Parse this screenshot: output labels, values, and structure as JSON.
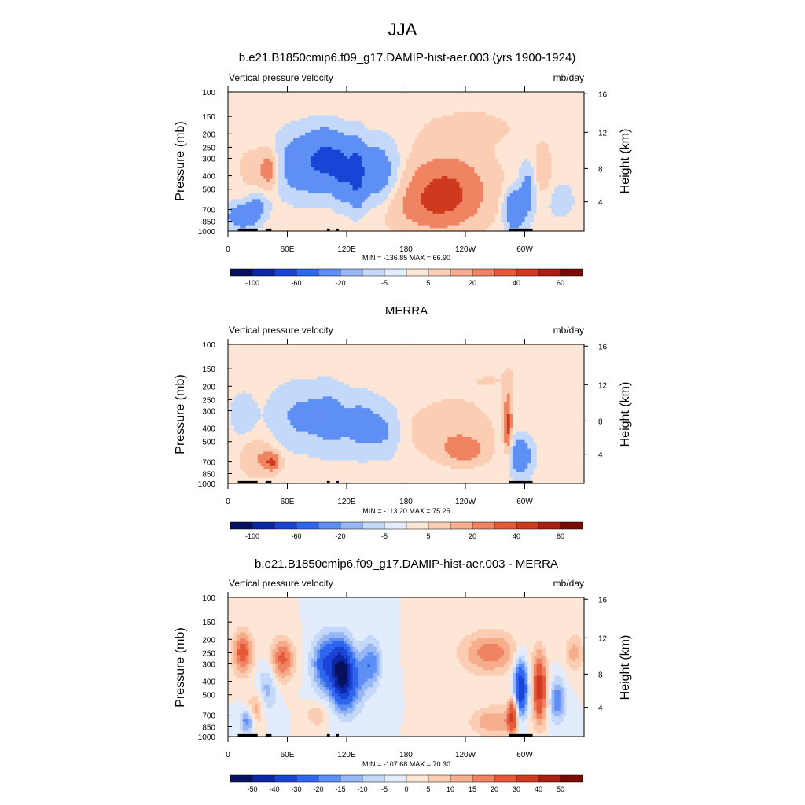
{
  "page": {
    "title": "JJA"
  },
  "panels": [
    {
      "title": "b.e21.B1850cmip6.f09_g17.DAMIP-hist-aer.003 (yrs 1900-1924)",
      "left_label": "Vertical pressure velocity",
      "right_label": "mb/day",
      "stats": "MIN = -136.85  MAX =  66.90"
    },
    {
      "title": "MERRA",
      "left_label": "Vertical pressure velocity",
      "right_label": "mb/day",
      "stats": "MIN = -113.20  MAX =  75.25"
    },
    {
      "title": "b.e21.B1850cmip6.f09_g17.DAMIP-hist-aer.003 - MERRA",
      "left_label": "Vertical pressure velocity",
      "right_label": "mb/day",
      "stats": "MIN = -107.68  MAX =  70.30"
    }
  ],
  "chart_data": [
    {
      "type": "heatmap",
      "title": "b.e21.B1850cmip6.f09_g17.DAMIP-hist-aer.003 (yrs 1900-1924)",
      "subtitle_left": "Vertical pressure velocity",
      "subtitle_right": "mb/day",
      "ylabel": "Pressure (mb)",
      "ylabel_right": "Height (km)",
      "x_ticks": [
        "0",
        "60E",
        "120E",
        "180",
        "120W",
        "60W"
      ],
      "x_tick_lon": [
        0,
        60,
        120,
        180,
        240,
        300
      ],
      "xlim": [
        0,
        360
      ],
      "y_ticks": [
        100,
        150,
        200,
        250,
        300,
        400,
        500,
        700,
        850,
        1000
      ],
      "ylim": [
        1000,
        100
      ],
      "y_scale": "log",
      "right_ticks": [
        4,
        8,
        12,
        16
      ],
      "right_tick_pressure": [
        615,
        355,
        195,
        103
      ],
      "min": -136.85,
      "max": 66.9,
      "colorbar_labels": [
        "-100",
        "-60",
        "-20",
        "-5",
        "5",
        "20",
        "40",
        "60"
      ],
      "colorbar_colors": [
        "#08115e",
        "#0c27a6",
        "#1a44d6",
        "#2f66f0",
        "#5e8ff5",
        "#96b6f7",
        "#c4d8fa",
        "#e2ecfd",
        "#fde6d6",
        "#fbcdb2",
        "#f6ad8c",
        "#f08462",
        "#e65a3a",
        "#cf3a1f",
        "#a91f11",
        "#7a0c05"
      ],
      "features": [
        {
          "lon": 15,
          "p": 780,
          "value": -45,
          "w": 16,
          "h": 0.2
        },
        {
          "lon": 30,
          "p": 650,
          "value": -25,
          "w": 10,
          "h": 0.18
        },
        {
          "lon": 28,
          "p": 350,
          "value": 12,
          "w": 18,
          "h": 0.35
        },
        {
          "lon": 42,
          "p": 360,
          "value": 30,
          "w": 9,
          "h": 0.3
        },
        {
          "lon": 75,
          "p": 330,
          "value": -40,
          "w": 26,
          "h": 0.5
        },
        {
          "lon": 100,
          "p": 300,
          "value": -55,
          "w": 18,
          "h": 0.45
        },
        {
          "lon": 115,
          "p": 380,
          "value": -45,
          "w": 10,
          "h": 0.45
        },
        {
          "lon": 130,
          "p": 380,
          "value": -65,
          "w": 8,
          "h": 0.5
        },
        {
          "lon": 150,
          "p": 380,
          "value": -40,
          "w": 22,
          "h": 0.5
        },
        {
          "lon": 220,
          "p": 480,
          "value": 40,
          "w": 42,
          "h": 0.55
        },
        {
          "lon": 205,
          "p": 700,
          "value": 20,
          "w": 45,
          "h": 0.4
        },
        {
          "lon": 245,
          "p": 180,
          "value": 8,
          "w": 55,
          "h": 0.35
        },
        {
          "lon": 290,
          "p": 700,
          "value": -60,
          "w": 10,
          "h": 0.3
        },
        {
          "lon": 303,
          "p": 500,
          "value": -30,
          "w": 8,
          "h": 0.4
        },
        {
          "lon": 318,
          "p": 380,
          "value": 15,
          "w": 10,
          "h": 0.45
        },
        {
          "lon": 335,
          "p": 600,
          "value": -10,
          "w": 18,
          "h": 0.35
        }
      ]
    },
    {
      "type": "heatmap",
      "title": "MERRA",
      "subtitle_left": "Vertical pressure velocity",
      "subtitle_right": "mb/day",
      "ylabel": "Pressure (mb)",
      "ylabel_right": "Height (km)",
      "x_ticks": [
        "0",
        "60E",
        "120E",
        "180",
        "120W",
        "60W"
      ],
      "x_tick_lon": [
        0,
        60,
        120,
        180,
        240,
        300
      ],
      "xlim": [
        0,
        360
      ],
      "y_ticks": [
        100,
        150,
        200,
        250,
        300,
        400,
        500,
        700,
        850,
        1000
      ],
      "ylim": [
        1000,
        100
      ],
      "y_scale": "log",
      "right_ticks": [
        4,
        8,
        12,
        16
      ],
      "right_tick_pressure": [
        615,
        355,
        195,
        103
      ],
      "min": -113.2,
      "max": 75.25,
      "colorbar_labels": [
        "-100",
        "-60",
        "-20",
        "-5",
        "5",
        "20",
        "40",
        "60"
      ],
      "colorbar_colors": [
        "#08115e",
        "#0c27a6",
        "#1a44d6",
        "#2f66f0",
        "#5e8ff5",
        "#96b6f7",
        "#c4d8fa",
        "#e2ecfd",
        "#fde6d6",
        "#fbcdb2",
        "#f6ad8c",
        "#f08462",
        "#e65a3a",
        "#cf3a1f",
        "#a91f11",
        "#7a0c05"
      ],
      "features": [
        {
          "lon": 15,
          "p": 320,
          "value": -15,
          "w": 12,
          "h": 0.35
        },
        {
          "lon": 30,
          "p": 650,
          "value": 20,
          "w": 16,
          "h": 0.3
        },
        {
          "lon": 45,
          "p": 700,
          "value": 40,
          "w": 8,
          "h": 0.15
        },
        {
          "lon": 75,
          "p": 330,
          "value": -25,
          "w": 30,
          "h": 0.5
        },
        {
          "lon": 105,
          "p": 350,
          "value": -22,
          "w": 16,
          "h": 0.5
        },
        {
          "lon": 135,
          "p": 380,
          "value": -30,
          "w": 18,
          "h": 0.45
        },
        {
          "lon": 160,
          "p": 420,
          "value": -20,
          "w": 14,
          "h": 0.4
        },
        {
          "lon": 225,
          "p": 420,
          "value": 16,
          "w": 40,
          "h": 0.45
        },
        {
          "lon": 240,
          "p": 580,
          "value": 28,
          "w": 20,
          "h": 0.2
        },
        {
          "lon": 265,
          "p": 180,
          "value": 5,
          "w": 50,
          "h": 0.3
        },
        {
          "lon": 283,
          "p": 380,
          "value": 45,
          "w": 4,
          "h": 0.55
        },
        {
          "lon": 295,
          "p": 640,
          "value": -45,
          "w": 12,
          "h": 0.3
        },
        {
          "lon": 340,
          "p": 200,
          "value": 3,
          "w": 20,
          "h": 0.3
        }
      ]
    },
    {
      "type": "heatmap",
      "title": "b.e21.B1850cmip6.f09_g17.DAMIP-hist-aer.003 - MERRA",
      "subtitle_left": "Vertical pressure velocity",
      "subtitle_right": "mb/day",
      "ylabel": "Pressure (mb)",
      "ylabel_right": "Height (km)",
      "x_ticks": [
        "0",
        "60E",
        "120E",
        "180",
        "120W",
        "60W"
      ],
      "x_tick_lon": [
        0,
        60,
        120,
        180,
        240,
        300
      ],
      "xlim": [
        0,
        360
      ],
      "y_ticks": [
        100,
        150,
        200,
        250,
        300,
        400,
        500,
        700,
        850,
        1000
      ],
      "ylim": [
        1000,
        100
      ],
      "y_scale": "log",
      "right_ticks": [
        4,
        8,
        12,
        16
      ],
      "right_tick_pressure": [
        615,
        355,
        195,
        103
      ],
      "min": -107.68,
      "max": 70.3,
      "colorbar_labels": [
        "-50",
        "-40",
        "-30",
        "-20",
        "-15",
        "-10",
        "-5",
        "0",
        "5",
        "10",
        "15",
        "20",
        "30",
        "40",
        "50"
      ],
      "colorbar_colors": [
        "#08115e",
        "#0c27a6",
        "#1a44d6",
        "#2f66f0",
        "#5e8ff5",
        "#96b6f7",
        "#c4d8fa",
        "#e2ecfd",
        "#fde6d6",
        "#fbcdb2",
        "#f6ad8c",
        "#f08462",
        "#e65a3a",
        "#cf3a1f",
        "#a91f11",
        "#7a0c05"
      ],
      "features": [
        {
          "lon": 15,
          "p": 250,
          "value": 25,
          "w": 10,
          "h": 0.35
        },
        {
          "lon": 28,
          "p": 650,
          "value": 15,
          "w": 8,
          "h": 0.3
        },
        {
          "lon": 20,
          "p": 780,
          "value": -20,
          "w": 8,
          "h": 0.2
        },
        {
          "lon": 55,
          "p": 280,
          "value": 22,
          "w": 12,
          "h": 0.35
        },
        {
          "lon": 40,
          "p": 450,
          "value": -12,
          "w": 10,
          "h": 0.4
        },
        {
          "lon": 100,
          "p": 300,
          "value": -30,
          "w": 14,
          "h": 0.45
        },
        {
          "lon": 115,
          "p": 350,
          "value": -40,
          "w": 10,
          "h": 0.5
        },
        {
          "lon": 125,
          "p": 400,
          "value": -20,
          "w": 14,
          "h": 0.5
        },
        {
          "lon": 145,
          "p": 300,
          "value": -18,
          "w": 10,
          "h": 0.4
        },
        {
          "lon": 90,
          "p": 700,
          "value": 10,
          "w": 10,
          "h": 0.2
        },
        {
          "lon": 265,
          "p": 250,
          "value": 18,
          "w": 30,
          "h": 0.35
        },
        {
          "lon": 270,
          "p": 780,
          "value": 15,
          "w": 25,
          "h": 0.25
        },
        {
          "lon": 288,
          "p": 700,
          "value": 30,
          "w": 5,
          "h": 0.3
        },
        {
          "lon": 296,
          "p": 450,
          "value": -40,
          "w": 7,
          "h": 0.5
        },
        {
          "lon": 315,
          "p": 450,
          "value": 35,
          "w": 7,
          "h": 0.55
        },
        {
          "lon": 333,
          "p": 550,
          "value": -20,
          "w": 8,
          "h": 0.35
        },
        {
          "lon": 350,
          "p": 250,
          "value": 12,
          "w": 10,
          "h": 0.3
        }
      ]
    }
  ]
}
